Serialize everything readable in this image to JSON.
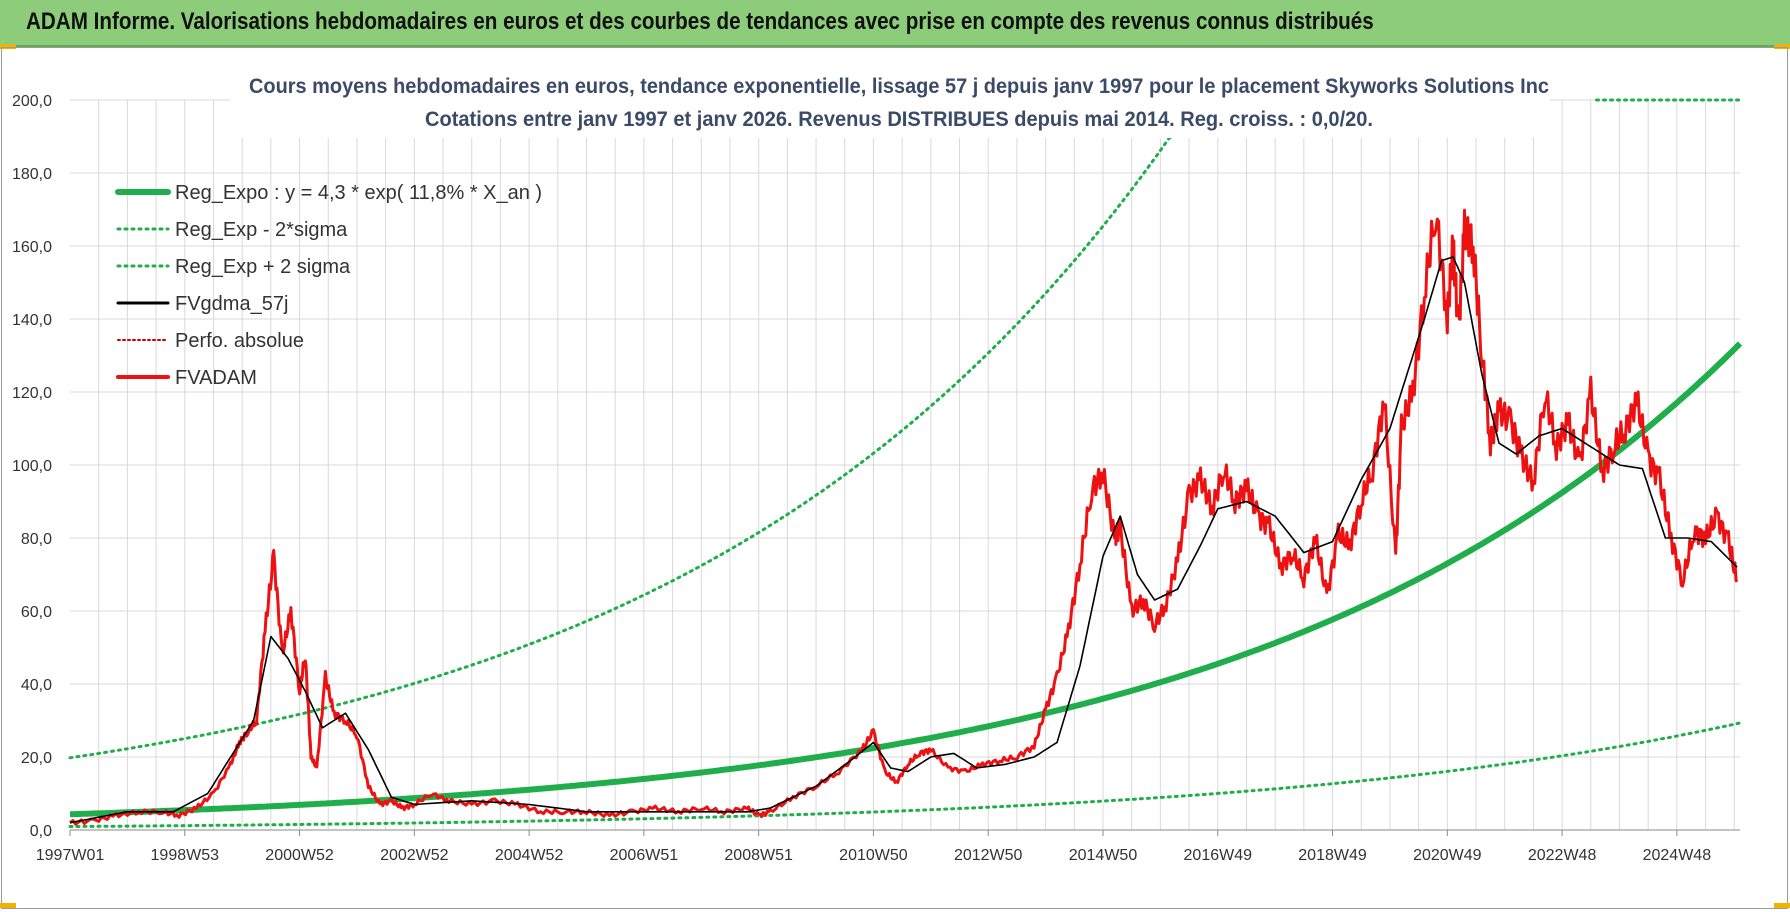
{
  "header": {
    "title": "ADAM Informe. Valorisations hebdomadaires en euros et des courbes de tendances avec prise en compte des revenus connus distribués"
  },
  "colors": {
    "banner": "#8ccc7a",
    "trend": "#1fae4b",
    "price": "#ee1111",
    "smooth": "#000000",
    "perfo": "#cc0000",
    "grid": "#d9d9d9"
  },
  "chart_data": {
    "type": "line",
    "title_line1": "Cours moyens hebdomadaires en euros, tendance exponentielle, lissage 57 j depuis janv 1997 pour le placement Skyworks Solutions Inc",
    "title_line2": "Cotations entre janv 1997 et janv 2026. Revenus DISTRIBUES depuis mai 2014. Reg. croiss. : 0,0/20.",
    "ylim": [
      0,
      200
    ],
    "xlim": [
      1997.0,
      2026.1
    ],
    "y_ticks": [
      "0,0",
      "20,0",
      "40,0",
      "60,0",
      "80,0",
      "100,0",
      "120,0",
      "140,0",
      "160,0",
      "180,0",
      "200,0"
    ],
    "x_ticks": [
      {
        "label": "1997W01",
        "x": 1997.0
      },
      {
        "label": "1998W53",
        "x": 1999.0
      },
      {
        "label": "2000W52",
        "x": 2001.0
      },
      {
        "label": "2002W52",
        "x": 2003.0
      },
      {
        "label": "2004W52",
        "x": 2005.0
      },
      {
        "label": "2006W51",
        "x": 2007.0
      },
      {
        "label": "2008W51",
        "x": 2009.0
      },
      {
        "label": "2010W50",
        "x": 2011.0
      },
      {
        "label": "2012W50",
        "x": 2013.0
      },
      {
        "label": "2014W50",
        "x": 2015.0
      },
      {
        "label": "2016W49",
        "x": 2017.0
      },
      {
        "label": "2018W49",
        "x": 2019.0
      },
      {
        "label": "2020W49",
        "x": 2021.0
      },
      {
        "label": "2022W48",
        "x": 2023.0
      },
      {
        "label": "2024W48",
        "x": 2025.0
      }
    ],
    "legend": [
      {
        "label": "Reg_Expo : y = 4,3 * exp( 11,8% *  X_an )",
        "style": "trend"
      },
      {
        "label": "Reg_Exp - 2*sigma",
        "style": "lower"
      },
      {
        "label": "Reg_Exp + 2 sigma",
        "style": "upper"
      },
      {
        "label": "FVgdma_57j",
        "style": "smooth"
      },
      {
        "label": "Perfo. absolue",
        "style": "perfo"
      },
      {
        "label": "FVADAM",
        "style": "price"
      }
    ],
    "regression": {
      "a": 4.3,
      "b": 0.118,
      "x0": 1997.0,
      "upper_factor": 4.6,
      "lower_factor": 0.22
    },
    "series": [
      {
        "name": "FVADAM",
        "x": [
          1997.0,
          1997.4,
          1997.8,
          1998.2,
          1998.6,
          1998.9,
          1999.2,
          1999.5,
          1999.8,
          1999.95,
          2000.1,
          2000.25,
          2000.4,
          2000.55,
          2000.7,
          2000.85,
          2001.0,
          2001.1,
          2001.2,
          2001.3,
          2001.45,
          2001.6,
          2001.8,
          2002.0,
          2002.2,
          2002.4,
          2002.6,
          2002.8,
          2003.0,
          2003.3,
          2003.6,
          2004.0,
          2004.4,
          2004.8,
          2005.2,
          2005.6,
          2006.0,
          2006.4,
          2006.8,
          2007.2,
          2007.6,
          2008.0,
          2008.4,
          2008.8,
          2009.0,
          2009.2,
          2009.6,
          2010.0,
          2010.4,
          2010.8,
          2011.0,
          2011.2,
          2011.4,
          2011.6,
          2011.8,
          2012.0,
          2012.3,
          2012.6,
          2012.9,
          2013.2,
          2013.5,
          2013.8,
          2014.0,
          2014.2,
          2014.4,
          2014.6,
          2014.8,
          2015.0,
          2015.2,
          2015.3,
          2015.5,
          2015.7,
          2015.9,
          2016.1,
          2016.3,
          2016.5,
          2016.7,
          2016.9,
          2017.1,
          2017.3,
          2017.5,
          2017.7,
          2017.9,
          2018.1,
          2018.3,
          2018.5,
          2018.7,
          2018.9,
          2019.1,
          2019.3,
          2019.5,
          2019.7,
          2019.9,
          2020.1,
          2020.2,
          2020.4,
          2020.6,
          2020.8,
          2021.0,
          2021.1,
          2021.2,
          2021.3,
          2021.45,
          2021.6,
          2021.75,
          2021.9,
          2022.1,
          2022.3,
          2022.5,
          2022.7,
          2022.9,
          2023.1,
          2023.3,
          2023.5,
          2023.7,
          2023.9,
          2024.1,
          2024.3,
          2024.5,
          2024.7,
          2024.9,
          2025.1,
          2025.3,
          2025.5,
          2025.7,
          2025.9,
          2026.05
        ],
        "values": [
          2,
          2.5,
          4,
          5,
          5,
          4,
          6,
          10,
          18,
          24,
          27,
          30,
          55,
          75,
          48,
          60,
          38,
          48,
          20,
          17,
          42,
          32,
          30,
          26,
          12,
          7,
          8,
          6,
          7,
          10,
          8,
          7,
          8,
          7,
          5,
          5,
          5,
          4,
          5,
          6,
          5,
          6,
          5,
          6,
          4,
          5,
          9,
          12,
          16,
          22,
          27,
          16,
          13,
          18,
          21,
          22,
          17,
          16,
          18,
          19,
          20,
          23,
          33,
          42,
          55,
          73,
          93,
          98,
          80,
          83,
          60,
          63,
          56,
          62,
          74,
          92,
          96,
          88,
          99,
          90,
          94,
          86,
          83,
          72,
          76,
          69,
          80,
          64,
          81,
          78,
          90,
          99,
          118,
          75,
          110,
          120,
          147,
          170,
          140,
          160,
          137,
          165,
          160,
          131,
          106,
          115,
          112,
          102,
          95,
          120,
          105,
          112,
          100,
          120,
          98,
          105,
          110,
          118,
          102,
          96,
          80,
          68,
          82,
          80,
          86,
          79,
          68
        ],
        "style": "price"
      },
      {
        "name": "FVgdma_57j",
        "x": [
          1997.0,
          1998.0,
          1998.8,
          1999.4,
          1999.8,
          2000.2,
          2000.5,
          2000.8,
          2001.1,
          2001.4,
          2001.8,
          2002.2,
          2002.6,
          2003.0,
          2004.0,
          2005.0,
          2006.0,
          2007.0,
          2008.0,
          2008.8,
          2009.2,
          2010.0,
          2010.6,
          2011.0,
          2011.3,
          2011.6,
          2012.0,
          2012.4,
          2012.8,
          2013.3,
          2013.8,
          2014.2,
          2014.6,
          2015.0,
          2015.3,
          2015.6,
          2015.9,
          2016.3,
          2016.7,
          2017.0,
          2017.5,
          2018.0,
          2018.5,
          2019.0,
          2019.5,
          2020.0,
          2020.3,
          2020.6,
          2020.9,
          2021.1,
          2021.3,
          2021.6,
          2021.9,
          2022.2,
          2022.6,
          2023.0,
          2023.5,
          2024.0,
          2024.4,
          2024.8,
          2025.2,
          2025.6,
          2026.05
        ],
        "values": [
          2,
          5,
          5,
          10,
          20,
          30,
          53,
          47,
          38,
          28,
          32,
          22,
          9,
          7,
          8,
          7,
          5,
          5,
          5,
          5,
          6,
          12,
          19,
          24,
          17,
          16,
          20,
          21,
          17,
          18,
          20,
          24,
          45,
          75,
          86,
          70,
          63,
          66,
          78,
          88,
          90,
          86,
          76,
          79,
          96,
          110,
          125,
          140,
          156,
          157,
          150,
          125,
          106,
          103,
          108,
          110,
          105,
          100,
          99,
          80,
          80,
          79,
          72
        ],
        "style": "smooth"
      }
    ]
  }
}
